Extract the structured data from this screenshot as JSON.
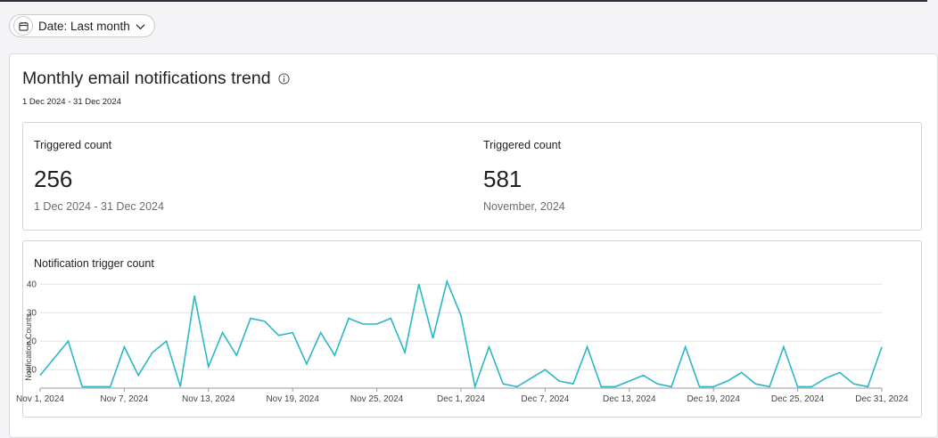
{
  "filter": {
    "label": "Date: Last month",
    "icon": "calendar-icon",
    "dropdown_icon": "chevron-down-icon"
  },
  "panel": {
    "title": "Monthly email notifications trend",
    "info_icon": "info-icon",
    "date_range": "1 Dec 2024 - 31 Dec 2024"
  },
  "stats": [
    {
      "label": "Triggered count",
      "value": "256",
      "period": "1 Dec 2024 - 31 Dec 2024"
    },
    {
      "label": "Triggered count",
      "value": "581",
      "period": "November, 2024"
    }
  ],
  "chart_card": {
    "title": "Notification trigger count"
  },
  "chart_data": {
    "type": "line",
    "ylabel": "Notification Counts",
    "xlabel": "",
    "ylim": [
      3.5,
      41
    ],
    "yticks": [
      10,
      20,
      30,
      40
    ],
    "grid": true,
    "line_color": "#2bb7c8",
    "x_tick_labels": [
      "Nov 1, 2024",
      "Nov 7, 2024",
      "Nov 13, 2024",
      "Nov 19, 2024",
      "Nov 25, 2024",
      "Dec 1, 2024",
      "Dec 7, 2024",
      "Dec 13, 2024",
      "Dec 19, 2024",
      "Dec 25, 2024",
      "Dec 31, 2024"
    ],
    "x_tick_indices": [
      0,
      6,
      12,
      18,
      24,
      30,
      36,
      42,
      48,
      54,
      60
    ],
    "series": [
      {
        "values": [
          8,
          14,
          20,
          4,
          4,
          4,
          18,
          8,
          16,
          20,
          4,
          36,
          11,
          23,
          15,
          28,
          27,
          22,
          23,
          12,
          23,
          15,
          28,
          26,
          26,
          28,
          16,
          40,
          21,
          41,
          29,
          4,
          18,
          5,
          4,
          7,
          10,
          6,
          5,
          18,
          4,
          4,
          6,
          8,
          5,
          4,
          18,
          4,
          4,
          6,
          9,
          5,
          4,
          18,
          4,
          4,
          7,
          9,
          5,
          4,
          18
        ]
      }
    ]
  }
}
